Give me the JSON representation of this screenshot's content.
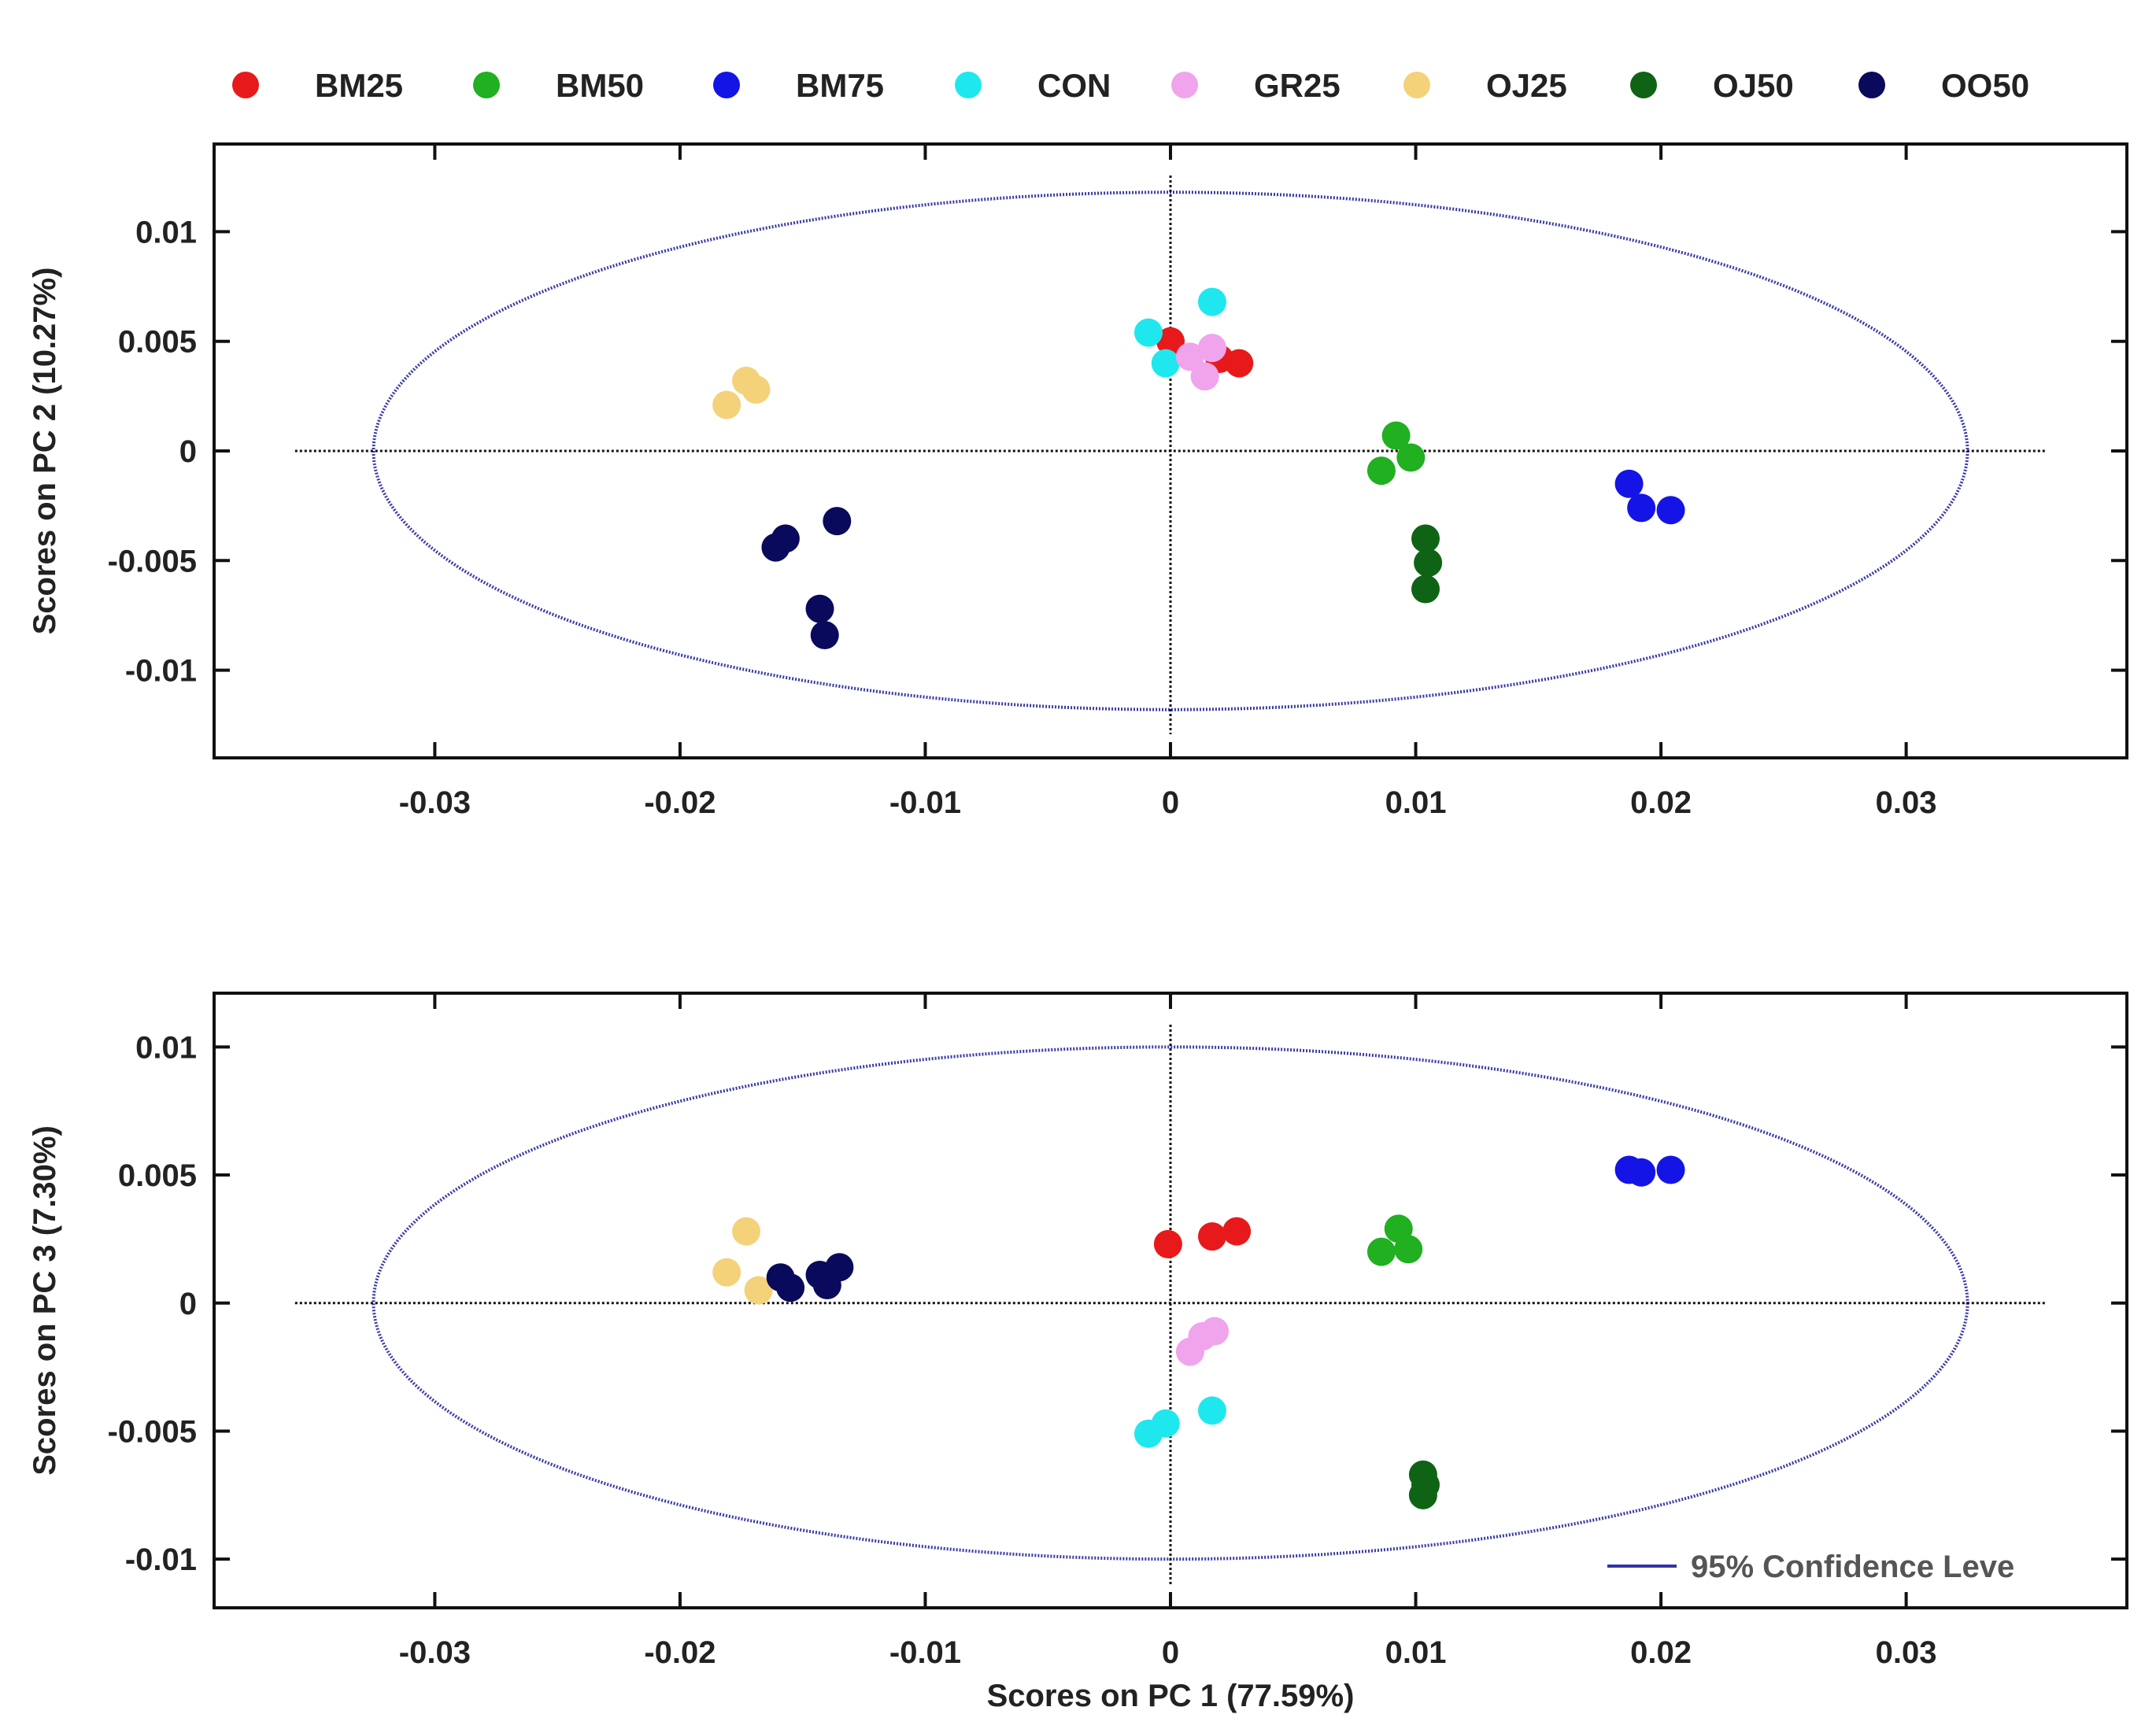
{
  "legend": {
    "items": [
      {
        "name": "BM25",
        "color": "#e8191a"
      },
      {
        "name": "BM50",
        "color": "#20b020"
      },
      {
        "name": "BM75",
        "color": "#1414e6"
      },
      {
        "name": "CON",
        "color": "#1ee8ee"
      },
      {
        "name": "GR25",
        "color": "#f0a4ec"
      },
      {
        "name": "OJ25",
        "color": "#f4d27a"
      },
      {
        "name": "OJ50",
        "color": "#0e6414"
      },
      {
        "name": "OO50",
        "color": "#0a0a5c"
      }
    ],
    "confidence_label": "95% Confidence Leve",
    "confidence_color": "#3333aa"
  },
  "chart_data": [
    {
      "type": "scatter",
      "title": "",
      "xlabel": "",
      "ylabel": "Scores on PC 2 (10.27%)",
      "xlim": [
        -0.039,
        0.039
      ],
      "ylim": [
        -0.014,
        0.014
      ],
      "x_ticks": [
        -0.03,
        -0.02,
        -0.01,
        0,
        0.01,
        0.02,
        0.03
      ],
      "x_tick_labels": [
        "-0.03",
        "-0.02",
        "-0.01",
        "0",
        "0.01",
        "0.02",
        "0.03"
      ],
      "y_ticks": [
        -0.01,
        -0.005,
        0,
        0.005,
        0.01
      ],
      "y_tick_labels": [
        "-0.01",
        "-0.005",
        "0",
        "0.005",
        "0.01"
      ],
      "ellipse": {
        "cx": 0,
        "cy": 0,
        "rx": 0.0325,
        "ry": 0.0118
      },
      "series": [
        {
          "name": "BM25",
          "points": [
            [
              0.0,
              0.005
            ],
            [
              0.002,
              0.0042
            ],
            [
              0.0028,
              0.004
            ]
          ]
        },
        {
          "name": "BM50",
          "points": [
            [
              0.0092,
              0.0007
            ],
            [
              0.0098,
              -0.0003
            ],
            [
              0.0086,
              -0.0009
            ]
          ]
        },
        {
          "name": "BM75",
          "points": [
            [
              0.0187,
              -0.0015
            ],
            [
              0.0192,
              -0.0026
            ],
            [
              0.0204,
              -0.0027
            ]
          ]
        },
        {
          "name": "CON",
          "points": [
            [
              -0.0009,
              0.0054
            ],
            [
              -0.0002,
              0.004
            ],
            [
              0.0017,
              0.0068
            ]
          ]
        },
        {
          "name": "GR25",
          "points": [
            [
              0.0008,
              0.0043
            ],
            [
              0.0017,
              0.0047
            ],
            [
              0.0014,
              0.0034
            ]
          ]
        },
        {
          "name": "OJ25",
          "points": [
            [
              -0.0173,
              0.0032
            ],
            [
              -0.0169,
              0.0028
            ],
            [
              -0.0181,
              0.0021
            ]
          ]
        },
        {
          "name": "OJ50",
          "points": [
            [
              0.0104,
              -0.004
            ],
            [
              0.0105,
              -0.0051
            ],
            [
              0.0104,
              -0.0063
            ]
          ]
        },
        {
          "name": "OO50",
          "points": [
            [
              -0.0157,
              -0.004
            ],
            [
              -0.0161,
              -0.0044
            ],
            [
              -0.0136,
              -0.0032
            ],
            [
              -0.0143,
              -0.0072
            ],
            [
              -0.0141,
              -0.0084
            ]
          ]
        }
      ]
    },
    {
      "type": "scatter",
      "title": "",
      "xlabel": "Scores on PC 1 (77.59%)",
      "ylabel": "Scores on PC 3 (7.30%)",
      "xlim": [
        -0.039,
        0.039
      ],
      "ylim": [
        -0.0119,
        0.0121
      ],
      "x_ticks": [
        -0.03,
        -0.02,
        -0.01,
        0,
        0.01,
        0.02,
        0.03
      ],
      "x_tick_labels": [
        "-0.03",
        "-0.02",
        "-0.01",
        "0",
        "0.01",
        "0.02",
        "0.03"
      ],
      "y_ticks": [
        -0.01,
        -0.005,
        0,
        0.005,
        0.01
      ],
      "y_tick_labels": [
        "-0.01",
        "-0.005",
        "0",
        "0.005",
        "0.01"
      ],
      "ellipse": {
        "cx": 0,
        "cy": 0,
        "rx": 0.0325,
        "ry": 0.01
      },
      "series": [
        {
          "name": "BM25",
          "points": [
            [
              -0.0001,
              0.0023
            ],
            [
              0.0017,
              0.0026
            ],
            [
              0.0027,
              0.0028
            ]
          ]
        },
        {
          "name": "BM50",
          "points": [
            [
              0.0093,
              0.0029
            ],
            [
              0.0086,
              0.002
            ],
            [
              0.0097,
              0.0021
            ]
          ]
        },
        {
          "name": "BM75",
          "points": [
            [
              0.0187,
              0.0052
            ],
            [
              0.0192,
              0.0051
            ],
            [
              0.0204,
              0.0052
            ]
          ]
        },
        {
          "name": "CON",
          "points": [
            [
              -0.0009,
              -0.0051
            ],
            [
              -0.0002,
              -0.0047
            ],
            [
              0.0017,
              -0.0042
            ]
          ]
        },
        {
          "name": "GR25",
          "points": [
            [
              0.0013,
              -0.0013
            ],
            [
              0.0018,
              -0.0011
            ],
            [
              0.0008,
              -0.0019
            ]
          ]
        },
        {
          "name": "OJ25",
          "points": [
            [
              -0.0173,
              0.0028
            ],
            [
              -0.0181,
              0.0012
            ],
            [
              -0.0168,
              0.0005
            ]
          ]
        },
        {
          "name": "OJ50",
          "points": [
            [
              0.0103,
              -0.0067
            ],
            [
              0.0104,
              -0.0071
            ],
            [
              0.0103,
              -0.0075
            ]
          ]
        },
        {
          "name": "OO50",
          "points": [
            [
              -0.0159,
              0.001
            ],
            [
              -0.0155,
              0.0006
            ],
            [
              -0.0143,
              0.0011
            ],
            [
              -0.0135,
              0.0014
            ],
            [
              -0.014,
              0.0007
            ]
          ]
        }
      ]
    }
  ]
}
